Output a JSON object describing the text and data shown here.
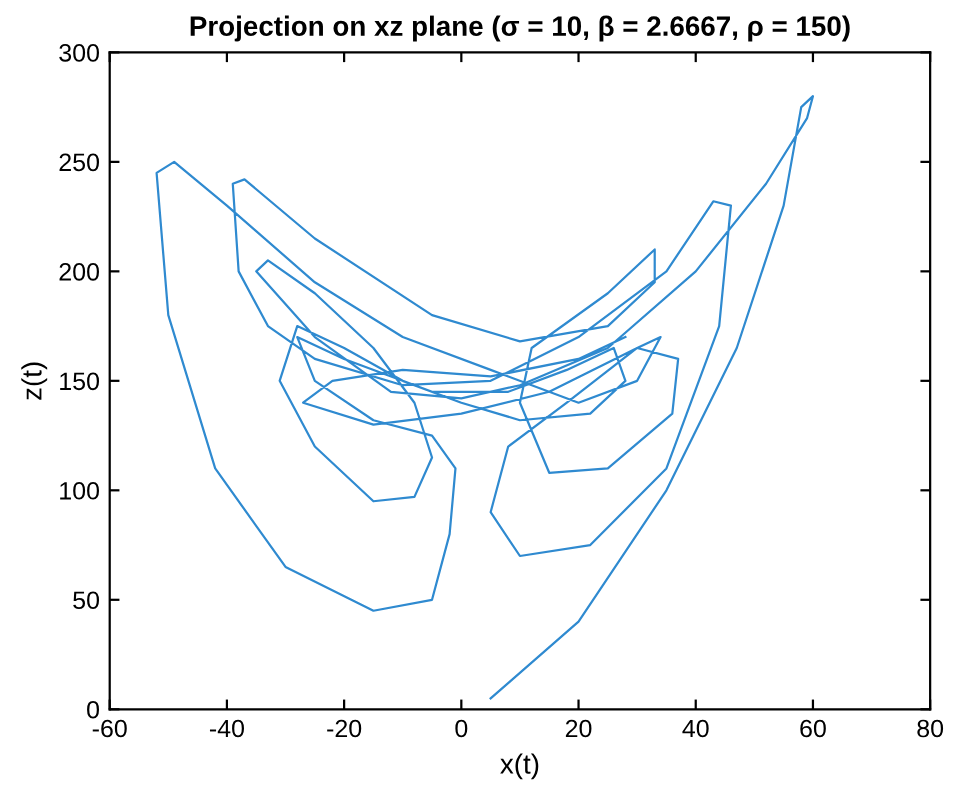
{
  "chart_data": {
    "type": "line",
    "title": "Projection on xz plane (σ = 10, β = 2.6667, ρ = 150)",
    "xlabel": "x(t)",
    "ylabel": "z(t)",
    "xlim": [
      -60,
      80
    ],
    "xticks": [
      -60,
      -40,
      -20,
      0,
      20,
      40,
      60,
      80
    ],
    "ylim": [
      0,
      300
    ],
    "yticks": [
      0,
      50,
      100,
      150,
      200,
      250,
      300
    ],
    "grid": false,
    "legend": false,
    "marker": "none",
    "line_style": "solid",
    "series": [
      {
        "color": "#2f8ad0",
        "x": [
          5,
          20,
          35,
          47,
          55,
          58,
          60,
          59,
          52,
          40,
          25,
          10,
          0,
          -12,
          -25,
          -35,
          -33,
          -25,
          -15,
          -8,
          -5,
          -8,
          -15,
          -25,
          -31,
          -28,
          -20,
          -10,
          0,
          10,
          22,
          28,
          26,
          18,
          8,
          -5,
          -20,
          -28,
          -25,
          -15,
          -5,
          -1,
          -2,
          -5,
          -15,
          -30,
          -42,
          -50,
          -52,
          -49,
          -40,
          -25,
          -10,
          5,
          20,
          30,
          34,
          30,
          18,
          8,
          5,
          10,
          22,
          35,
          44,
          46,
          43,
          35,
          20,
          5,
          -10,
          -25,
          -33,
          -38,
          -39,
          -37,
          -25,
          -5,
          10,
          25,
          33,
          33,
          25,
          12,
          10,
          15,
          25,
          36,
          37,
          30,
          15,
          0,
          -15,
          -27,
          -22,
          -10,
          5,
          20,
          28
        ],
        "values": [
          5,
          40,
          100,
          165,
          230,
          275,
          280,
          270,
          240,
          200,
          165,
          148,
          142,
          145,
          170,
          200,
          205,
          190,
          165,
          140,
          115,
          97,
          95,
          120,
          150,
          175,
          165,
          150,
          140,
          132,
          135,
          150,
          165,
          155,
          145,
          145,
          160,
          170,
          150,
          132,
          125,
          110,
          80,
          50,
          45,
          65,
          110,
          180,
          245,
          250,
          230,
          195,
          170,
          155,
          140,
          150,
          170,
          165,
          140,
          120,
          90,
          70,
          75,
          110,
          175,
          230,
          232,
          200,
          170,
          150,
          148,
          160,
          175,
          200,
          240,
          242,
          215,
          180,
          168,
          175,
          195,
          210,
          190,
          165,
          140,
          108,
          110,
          135,
          160,
          165,
          145,
          135,
          130,
          140,
          150,
          155,
          152,
          160,
          170
        ]
      }
    ]
  }
}
